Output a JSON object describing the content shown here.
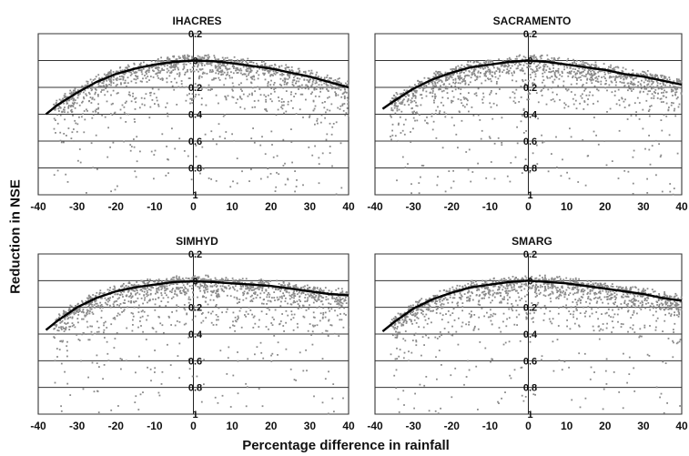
{
  "figure": {
    "ylabel": "Reduction in NSE",
    "xlabel": "Percentage difference in rainfall"
  },
  "chart_data": [
    {
      "type": "scatter",
      "title": "IHACRES",
      "xlabel": "",
      "ylabel": "",
      "xlim": [
        -40,
        40
      ],
      "ylim": [
        -1,
        0.2
      ],
      "xticks": [
        -40,
        -30,
        -20,
        -10,
        0,
        10,
        20,
        30,
        40
      ],
      "xtick_labels": [
        "-40",
        "-30",
        "-20",
        "-10",
        "0",
        "10",
        "20",
        "30",
        "40"
      ],
      "yticks": [
        0.2,
        0,
        -0.2,
        -0.4,
        -0.6,
        -0.8,
        -1
      ],
      "ytick_labels": [
        "0.2",
        "0",
        "0.2",
        "0.4",
        "0.6",
        "0.8",
        "1"
      ],
      "grid": "horizontal",
      "point_color": "#8a8a8a",
      "curve": {
        "x": [
          -38,
          -35,
          -30,
          -25,
          -20,
          -15,
          -10,
          -5,
          0,
          5,
          10,
          15,
          20,
          25,
          30,
          35,
          40
        ],
        "y": [
          -0.4,
          -0.33,
          -0.24,
          -0.16,
          -0.1,
          -0.06,
          -0.03,
          -0.01,
          0,
          -0.005,
          -0.02,
          -0.04,
          -0.06,
          -0.09,
          -0.12,
          -0.16,
          -0.2
        ]
      },
      "scatter_seed": 11
    },
    {
      "type": "scatter",
      "title": "SACRAMENTO",
      "xlabel": "",
      "ylabel": "",
      "xlim": [
        -40,
        40
      ],
      "ylim": [
        -1,
        0.2
      ],
      "xticks": [
        -40,
        -30,
        -20,
        -10,
        0,
        10,
        20,
        30,
        40
      ],
      "xtick_labels": [
        "-40",
        "-30",
        "-20",
        "-10",
        "0",
        "10",
        "20",
        "30",
        "40"
      ],
      "yticks": [
        0.2,
        0,
        -0.2,
        -0.4,
        -0.6,
        -0.8,
        -1
      ],
      "ytick_labels": [
        "0.2",
        "0",
        "0.2",
        "0.4",
        "0.6",
        "0.8",
        "1"
      ],
      "grid": "horizontal",
      "point_color": "#8a8a8a",
      "curve": {
        "x": [
          -38,
          -35,
          -30,
          -25,
          -20,
          -15,
          -10,
          -5,
          0,
          5,
          10,
          15,
          20,
          25,
          30,
          35,
          40
        ],
        "y": [
          -0.36,
          -0.3,
          -0.21,
          -0.14,
          -0.09,
          -0.05,
          -0.03,
          -0.01,
          0,
          -0.01,
          -0.03,
          -0.05,
          -0.07,
          -0.1,
          -0.12,
          -0.15,
          -0.18
        ]
      },
      "scatter_seed": 23
    },
    {
      "type": "scatter",
      "title": "SIMHYD",
      "xlabel": "",
      "ylabel": "",
      "xlim": [
        -40,
        40
      ],
      "ylim": [
        -1,
        0.2
      ],
      "xticks": [
        -40,
        -30,
        -20,
        -10,
        0,
        10,
        20,
        30,
        40
      ],
      "xtick_labels": [
        "-40",
        "-30",
        "-20",
        "-10",
        "0",
        "10",
        "20",
        "30",
        "40"
      ],
      "yticks": [
        0.2,
        0,
        -0.2,
        -0.4,
        -0.6,
        -0.8,
        -1
      ],
      "ytick_labels": [
        "0.2",
        "0",
        "0.2",
        "0.4",
        "0.6",
        "0.8",
        "1"
      ],
      "grid": "horizontal",
      "point_color": "#8a8a8a",
      "curve": {
        "x": [
          -38,
          -35,
          -30,
          -25,
          -20,
          -15,
          -10,
          -5,
          0,
          5,
          10,
          15,
          20,
          25,
          30,
          35,
          40
        ],
        "y": [
          -0.37,
          -0.3,
          -0.2,
          -0.13,
          -0.08,
          -0.05,
          -0.03,
          -0.01,
          -0.005,
          -0.01,
          -0.02,
          -0.03,
          -0.04,
          -0.06,
          -0.08,
          -0.1,
          -0.11
        ]
      },
      "scatter_seed": 37
    },
    {
      "type": "scatter",
      "title": "SMARG",
      "xlabel": "",
      "ylabel": "",
      "xlim": [
        -40,
        40
      ],
      "ylim": [
        -1,
        0.2
      ],
      "xticks": [
        -40,
        -30,
        -20,
        -10,
        0,
        10,
        20,
        30,
        40
      ],
      "xtick_labels": [
        "-40",
        "-30",
        "-20",
        "-10",
        "0",
        "10",
        "20",
        "30",
        "40"
      ],
      "yticks": [
        0.2,
        0,
        -0.2,
        -0.4,
        -0.6,
        -0.8,
        -1
      ],
      "ytick_labels": [
        "0.2",
        "0",
        "0.2",
        "0.4",
        "0.6",
        "0.8",
        "1"
      ],
      "grid": "horizontal",
      "point_color": "#8a8a8a",
      "curve": {
        "x": [
          -38,
          -35,
          -30,
          -25,
          -20,
          -15,
          -10,
          -5,
          0,
          5,
          10,
          15,
          20,
          25,
          30,
          35,
          40
        ],
        "y": [
          -0.38,
          -0.31,
          -0.21,
          -0.14,
          -0.09,
          -0.05,
          -0.03,
          -0.01,
          0,
          -0.01,
          -0.02,
          -0.04,
          -0.06,
          -0.08,
          -0.1,
          -0.13,
          -0.15
        ]
      },
      "scatter_seed": 53
    }
  ]
}
